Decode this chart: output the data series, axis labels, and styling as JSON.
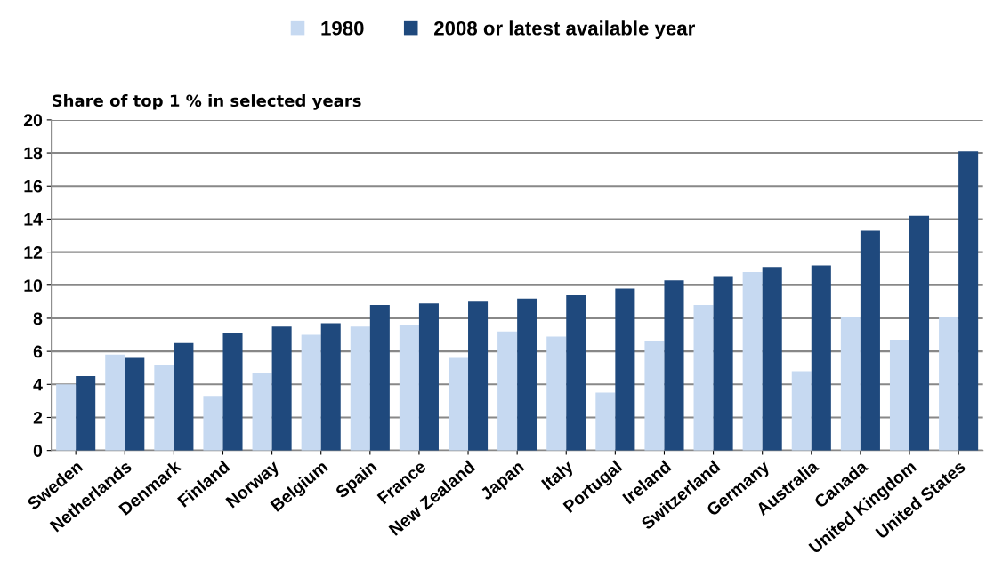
{
  "chart_data": {
    "type": "bar",
    "ylabel": "Share of top 1 % in selected years",
    "categories": [
      "Sweden",
      "Netherlands",
      "Denmark",
      "Finland",
      "Norway",
      "Belgium",
      "Spain",
      "France",
      "New Zealand",
      "Japan",
      "Italy",
      "Portugal",
      "Ireland",
      "Switzerland",
      "Germany",
      "Australia",
      "Canada",
      "United Kingdom",
      "United States"
    ],
    "series": [
      {
        "name": "1980",
        "color": "#c6d9f1",
        "values": [
          4.0,
          5.8,
          5.2,
          3.3,
          4.7,
          7.0,
          7.5,
          7.6,
          5.6,
          7.2,
          6.9,
          3.5,
          6.6,
          8.8,
          10.8,
          4.8,
          8.1,
          6.7,
          8.1
        ]
      },
      {
        "name": "2008 or latest available year",
        "color": "#1f497d",
        "values": [
          4.5,
          5.6,
          6.5,
          7.1,
          7.5,
          7.7,
          8.8,
          8.9,
          9.0,
          9.2,
          9.4,
          9.8,
          10.3,
          10.5,
          11.1,
          11.2,
          13.3,
          14.2,
          18.1
        ]
      }
    ],
    "ylim": [
      0,
      20
    ],
    "yticks": [
      0,
      2,
      4,
      6,
      8,
      10,
      12,
      14,
      16,
      18,
      20
    ],
    "grid": "y",
    "legend": "top"
  }
}
